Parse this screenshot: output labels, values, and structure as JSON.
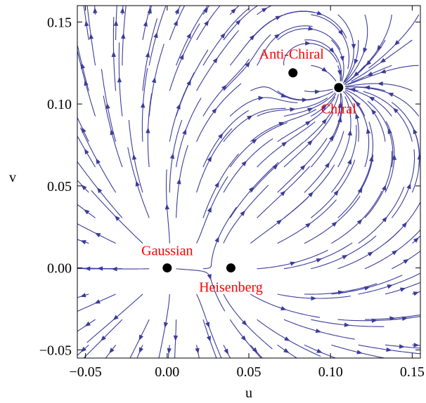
{
  "chart_data": {
    "type": "streamplot",
    "title": "",
    "xlabel": "u",
    "ylabel": "v",
    "xlim": [
      -0.055,
      0.155
    ],
    "ylim": [
      -0.055,
      0.16
    ],
    "x_ticks": [
      -0.05,
      0.0,
      0.05,
      0.1,
      0.15
    ],
    "x_tick_labels": [
      "−0.05",
      "0.00",
      "0.05",
      "0.10",
      "0.15"
    ],
    "y_ticks": [
      -0.05,
      0.0,
      0.05,
      0.1,
      0.15
    ],
    "y_tick_labels": [
      "−0.05",
      "0.00",
      "0.05",
      "0.10",
      "0.15"
    ],
    "grid": false,
    "stream_color": "#3c3c9a",
    "fixed_point_color": "#000000",
    "label_color": "#ff0000",
    "fixed_points": [
      {
        "name": "Gaussian",
        "u": 0.0,
        "v": 0.0
      },
      {
        "name": "Heisenberg",
        "u": 0.039,
        "v": 0.0
      },
      {
        "name": "Anti-Chiral",
        "u": 0.077,
        "v": 0.119
      },
      {
        "name": "Chiral",
        "u": 0.105,
        "v": 0.11
      }
    ]
  }
}
